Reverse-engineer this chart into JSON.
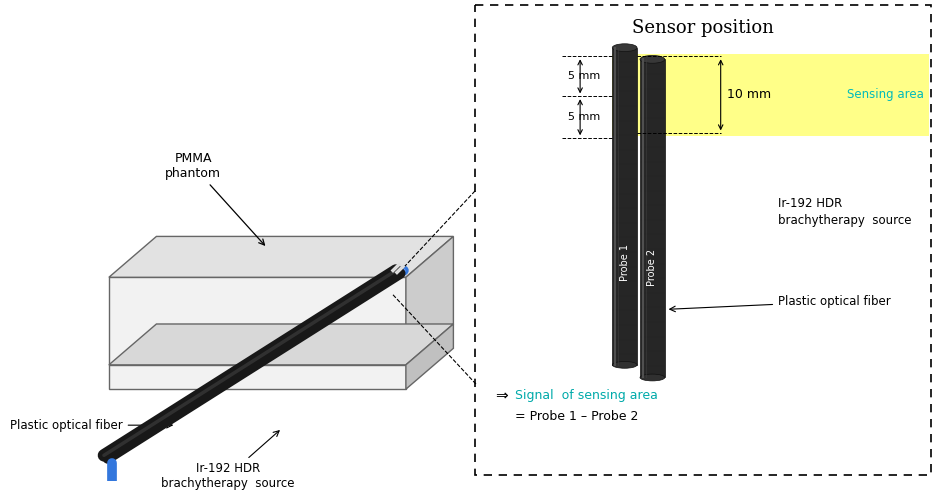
{
  "bg_color": "#ffffff",
  "sensor_position_title": "Sensor position",
  "sensing_area_color": "#ffff88",
  "sensing_area_label": "Sensing area",
  "sensing_area_color_text": "#00bbbb",
  "signal_text_color": "#00aaaa",
  "probe1_label": "Probe 1",
  "probe2_label": "Probe 2",
  "ir192_label": "Ir-192 HDR\nbrachytherapy  source",
  "plastic_fiber_label": "Plastic optical fiber",
  "pmma_label": "PMMA\nphantom",
  "plastic_fiber_label2": "Plastic optical fiber",
  "ir192_label2": "Ir-192 HDR\nbrachytherapy  source",
  "signal_arrow": "⇒",
  "signal_line1": "Signal  of sensing area",
  "signal_line2": "= Probe 1 – Probe 2",
  "dim_5mm_1": "5 mm",
  "dim_5mm_2": "5 mm",
  "dim_10mm": "10 mm"
}
